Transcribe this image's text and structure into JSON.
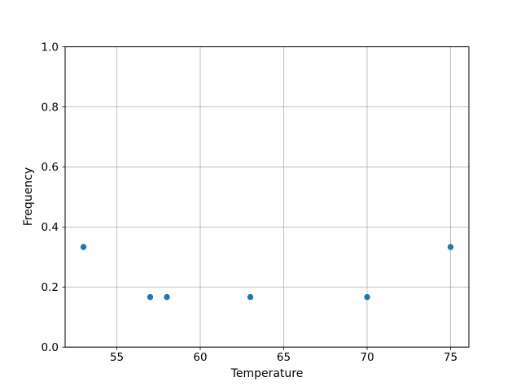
{
  "figure": {
    "background": "#ffffff"
  },
  "chart_data": {
    "type": "scatter",
    "title": "",
    "xlabel": "Temperature",
    "ylabel": "Frequency",
    "x": [
      53,
      57,
      58,
      63,
      70,
      75
    ],
    "y": [
      0.3333,
      0.1667,
      0.1667,
      0.1667,
      0.1667,
      0.3333
    ],
    "xlim": [
      51.9,
      76.1
    ],
    "ylim": [
      0.0,
      1.0
    ],
    "xticks": [
      55,
      60,
      65,
      70,
      75
    ],
    "xtick_labels": [
      "55",
      "60",
      "65",
      "70",
      "75"
    ],
    "yticks": [
      0.0,
      0.2,
      0.4,
      0.6,
      0.8,
      1.0
    ],
    "ytick_labels": [
      "0.0",
      "0.2",
      "0.4",
      "0.6",
      "0.8",
      "1.0"
    ],
    "grid": true,
    "legend": false,
    "marker_color": "#1f77b4",
    "grid_color": "#b0b0b0",
    "spine_color": "#000000",
    "marker_radius_px": 3.7
  }
}
